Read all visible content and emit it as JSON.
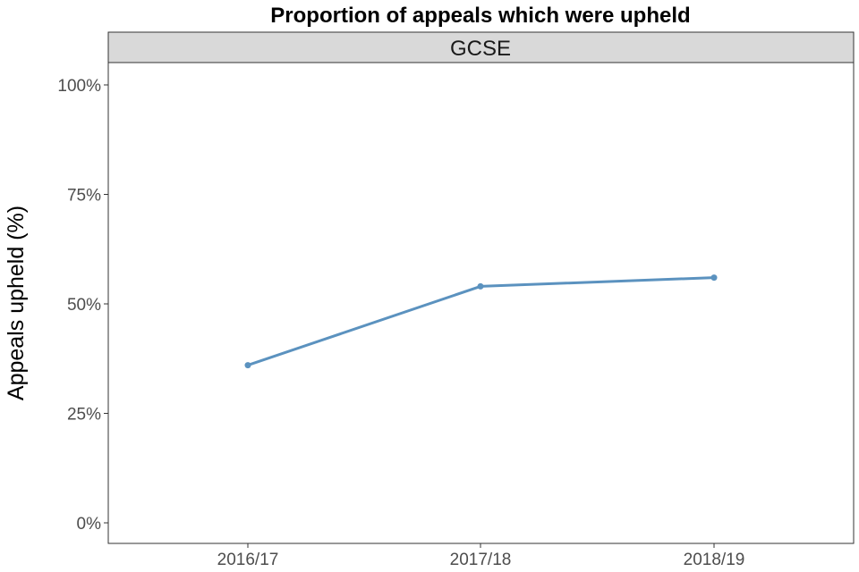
{
  "chart_data": {
    "type": "line",
    "title": "Proportion of appeals which were upheld",
    "facet_label": "GCSE",
    "xlabel": "",
    "ylabel": "Appeals upheld (%)",
    "categories": [
      "2016/17",
      "2017/18",
      "2018/19"
    ],
    "series": [
      {
        "values": [
          36,
          54,
          56
        ],
        "color": "#5b92bf"
      }
    ],
    "ylim": [
      0,
      100
    ],
    "yticks": [
      0,
      25,
      50,
      75,
      100
    ],
    "ytick_labels": [
      "0%",
      "25%",
      "50%",
      "75%",
      "100%"
    ],
    "grid": false,
    "legend": "none",
    "colors": {
      "strip_fill": "#d9d9d9",
      "frame": "#333333",
      "tick_text": "#4d4d4d"
    }
  }
}
